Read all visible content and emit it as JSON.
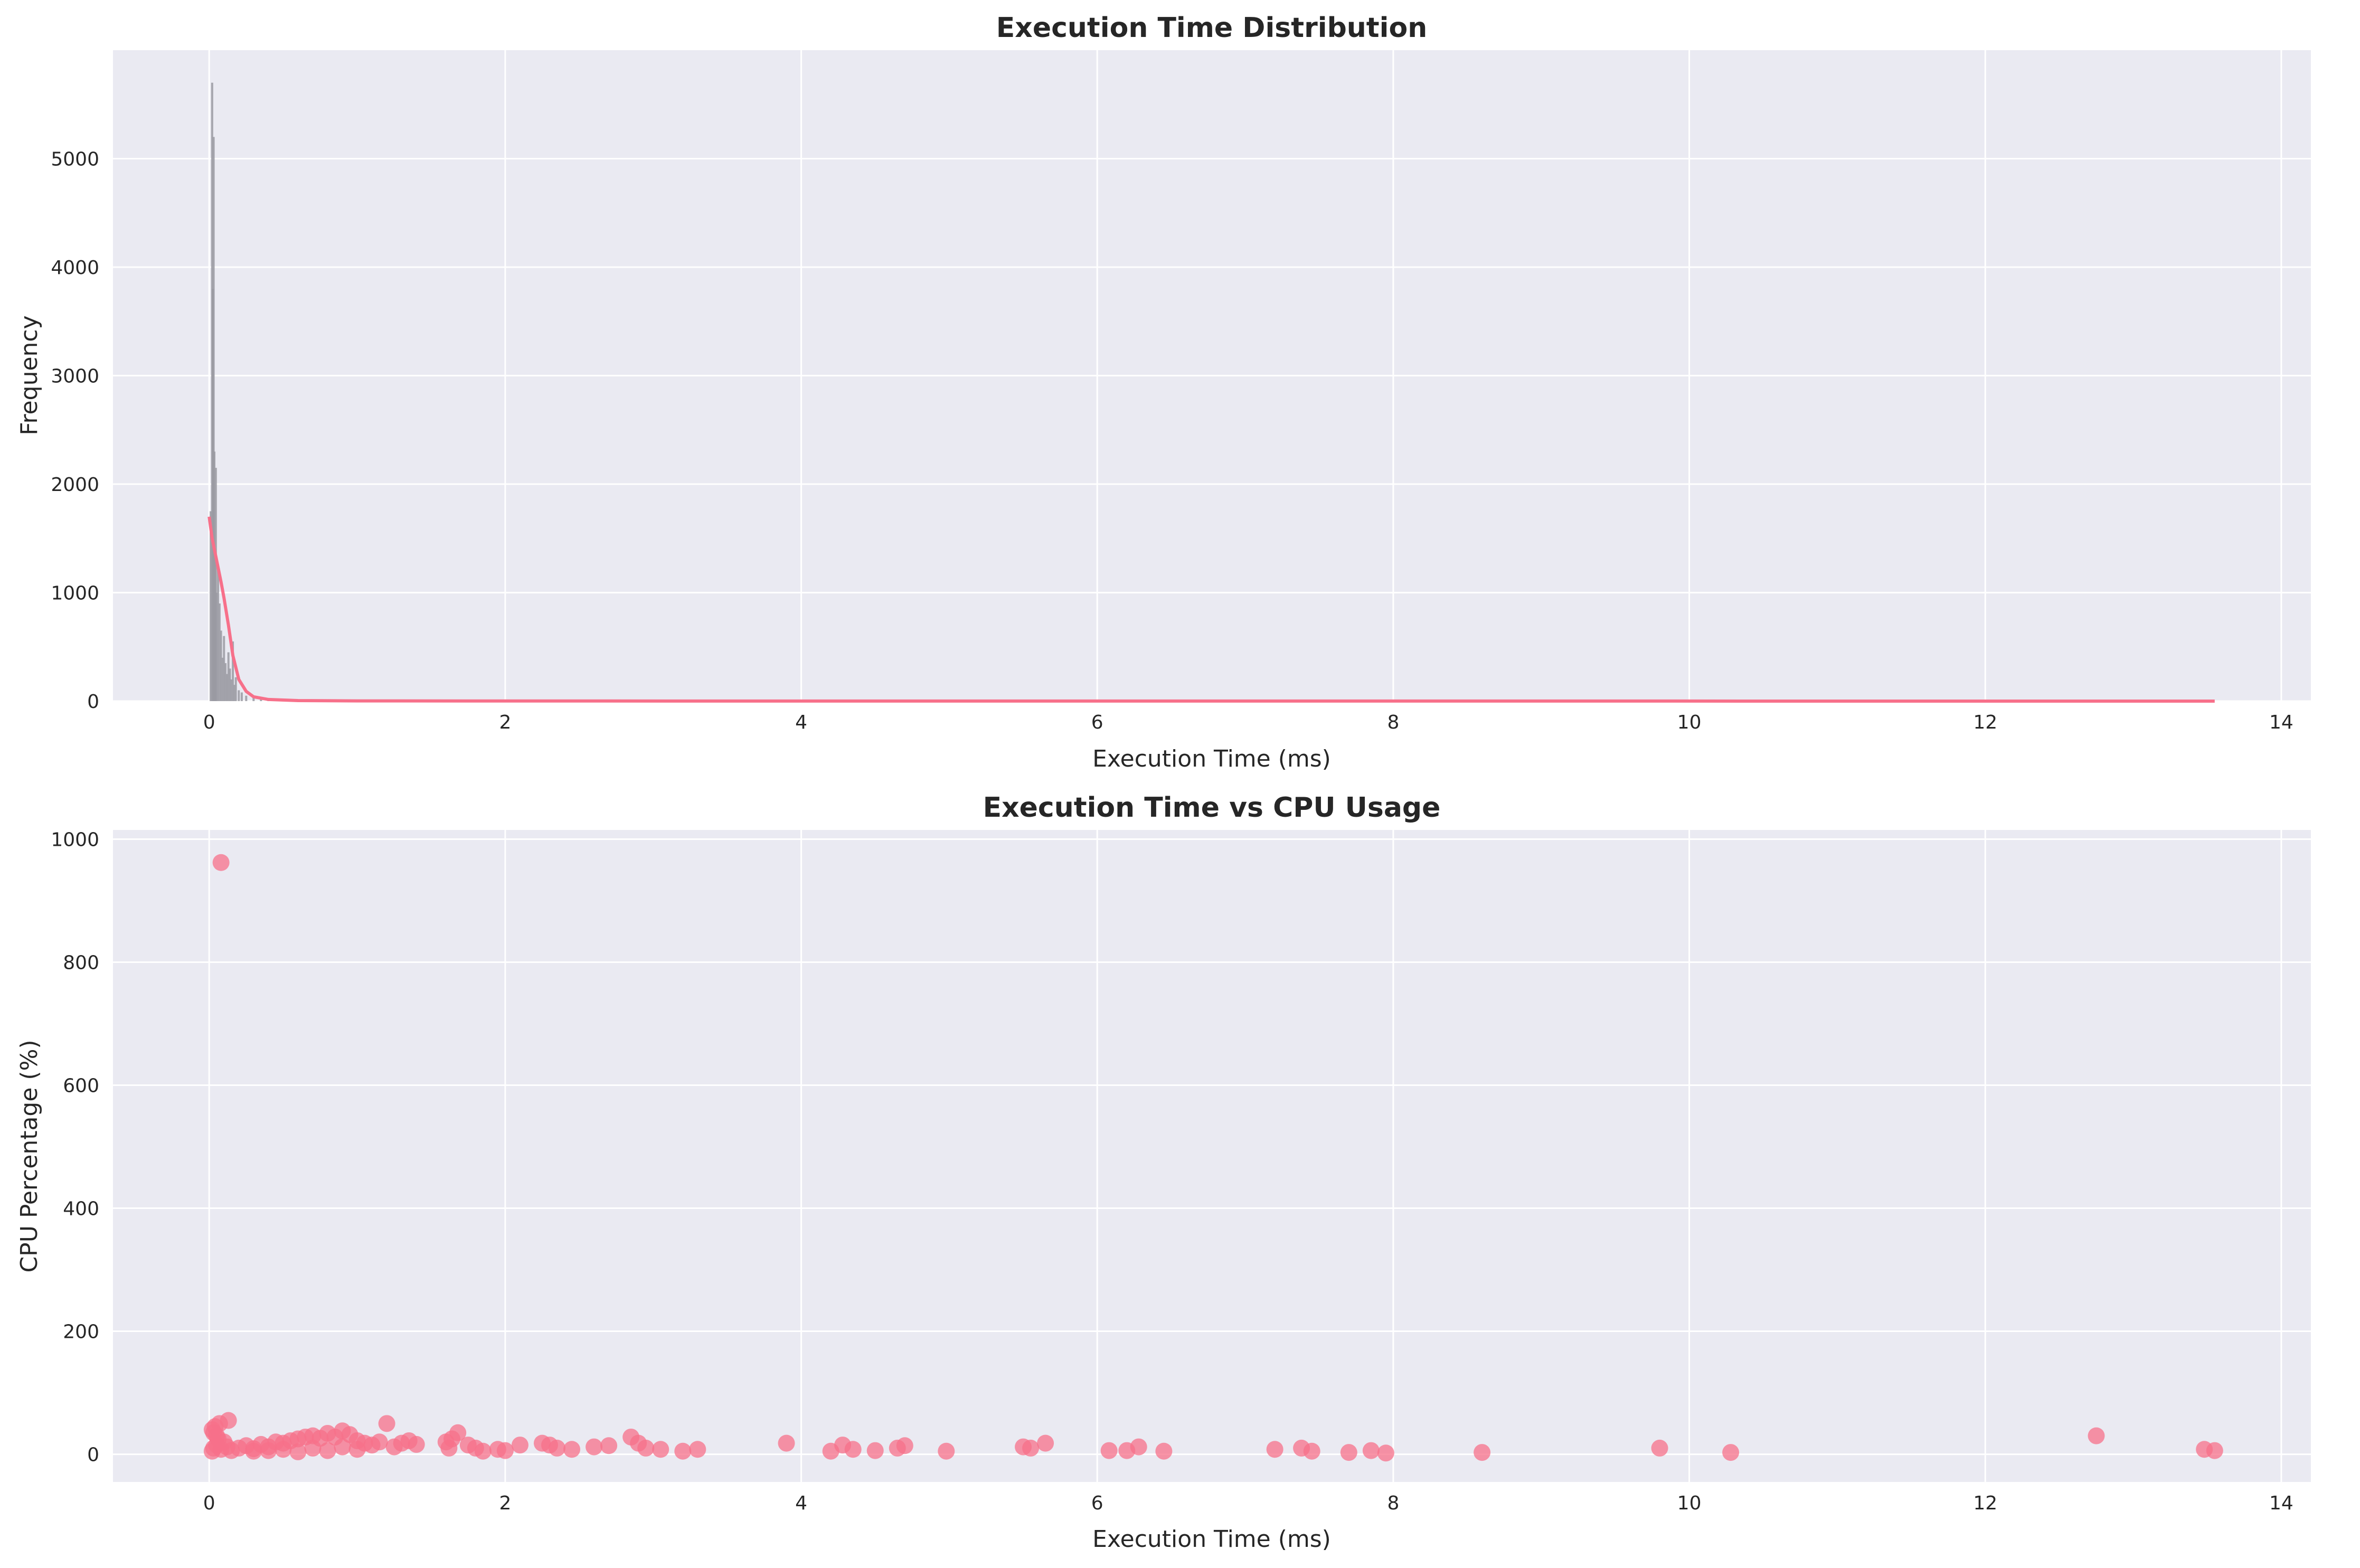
{
  "colors": {
    "accent": "#f7708a",
    "plot_bg": "#eaeaf2",
    "grid": "#ffffff",
    "hist_bar": "#9a9aa2"
  },
  "chart_data": [
    {
      "type": "histogram",
      "title": "Execution Time Distribution",
      "xlabel": "Execution Time (ms)",
      "ylabel": "Frequency",
      "xlim": [
        -0.65,
        14.2
      ],
      "ylim": [
        0,
        6000
      ],
      "xticks": [
        0,
        2,
        4,
        6,
        8,
        10,
        12,
        14
      ],
      "yticks": [
        0,
        1000,
        2000,
        3000,
        4000,
        5000
      ],
      "grid": true,
      "bins": [
        {
          "x": 0.01,
          "y": 1750
        },
        {
          "x": 0.02,
          "y": 5700
        },
        {
          "x": 0.025,
          "y": 3800
        },
        {
          "x": 0.03,
          "y": 5200
        },
        {
          "x": 0.035,
          "y": 2300
        },
        {
          "x": 0.04,
          "y": 1400
        },
        {
          "x": 0.045,
          "y": 2150
        },
        {
          "x": 0.05,
          "y": 1000
        },
        {
          "x": 0.06,
          "y": 1250
        },
        {
          "x": 0.07,
          "y": 900
        },
        {
          "x": 0.08,
          "y": 650
        },
        {
          "x": 0.09,
          "y": 400
        },
        {
          "x": 0.1,
          "y": 600
        },
        {
          "x": 0.11,
          "y": 350
        },
        {
          "x": 0.12,
          "y": 250
        },
        {
          "x": 0.13,
          "y": 450
        },
        {
          "x": 0.14,
          "y": 300
        },
        {
          "x": 0.15,
          "y": 200
        },
        {
          "x": 0.16,
          "y": 550
        },
        {
          "x": 0.17,
          "y": 150
        },
        {
          "x": 0.18,
          "y": 220
        },
        {
          "x": 0.2,
          "y": 100
        },
        {
          "x": 0.22,
          "y": 80
        },
        {
          "x": 0.25,
          "y": 50
        },
        {
          "x": 0.3,
          "y": 30
        },
        {
          "x": 0.35,
          "y": 15
        },
        {
          "x": 0.4,
          "y": 8
        }
      ],
      "kde": [
        [
          0.0,
          1700
        ],
        [
          0.02,
          1500
        ],
        [
          0.05,
          1300
        ],
        [
          0.08,
          1100
        ],
        [
          0.1,
          950
        ],
        [
          0.13,
          700
        ],
        [
          0.16,
          420
        ],
        [
          0.2,
          200
        ],
        [
          0.25,
          90
        ],
        [
          0.3,
          40
        ],
        [
          0.4,
          15
        ],
        [
          0.6,
          5
        ],
        [
          1.0,
          2
        ],
        [
          2.0,
          1
        ],
        [
          13.55,
          0
        ]
      ]
    },
    {
      "type": "scatter",
      "title": "Execution Time vs CPU Usage",
      "xlabel": "Execution Time (ms)",
      "ylabel": "CPU Percentage (%)",
      "xlim": [
        -0.65,
        14.2
      ],
      "ylim": [
        -45,
        1015
      ],
      "xticks": [
        0,
        2,
        4,
        6,
        8,
        10,
        12,
        14
      ],
      "yticks": [
        0,
        200,
        400,
        600,
        800,
        1000
      ],
      "grid": true,
      "points": [
        [
          0.08,
          962
        ],
        [
          0.02,
          40
        ],
        [
          0.03,
          35
        ],
        [
          0.04,
          45
        ],
        [
          0.05,
          30
        ],
        [
          0.06,
          25
        ],
        [
          0.07,
          50
        ],
        [
          0.1,
          20
        ],
        [
          0.13,
          55
        ],
        [
          0.02,
          5
        ],
        [
          0.03,
          10
        ],
        [
          0.05,
          15
        ],
        [
          0.08,
          8
        ],
        [
          0.12,
          12
        ],
        [
          0.15,
          6
        ],
        [
          0.2,
          10
        ],
        [
          0.25,
          14
        ],
        [
          0.3,
          9
        ],
        [
          0.35,
          16
        ],
        [
          0.4,
          12
        ],
        [
          0.45,
          20
        ],
        [
          0.5,
          18
        ],
        [
          0.55,
          22
        ],
        [
          0.6,
          25
        ],
        [
          0.65,
          28
        ],
        [
          0.7,
          30
        ],
        [
          0.75,
          26
        ],
        [
          0.8,
          34
        ],
        [
          0.85,
          28
        ],
        [
          0.9,
          38
        ],
        [
          0.95,
          32
        ],
        [
          1.0,
          22
        ],
        [
          1.05,
          18
        ],
        [
          1.1,
          15
        ],
        [
          1.15,
          20
        ],
        [
          1.2,
          50
        ],
        [
          1.25,
          12
        ],
        [
          1.3,
          18
        ],
        [
          1.35,
          22
        ],
        [
          1.4,
          16
        ],
        [
          0.3,
          5
        ],
        [
          0.4,
          6
        ],
        [
          0.5,
          8
        ],
        [
          0.6,
          4
        ],
        [
          0.7,
          10
        ],
        [
          0.8,
          6
        ],
        [
          0.9,
          12
        ],
        [
          1.0,
          8
        ],
        [
          1.6,
          20
        ],
        [
          1.62,
          10
        ],
        [
          1.64,
          25
        ],
        [
          1.68,
          35
        ],
        [
          1.75,
          15
        ],
        [
          1.8,
          10
        ],
        [
          1.85,
          5
        ],
        [
          1.95,
          8
        ],
        [
          2.0,
          6
        ],
        [
          2.1,
          15
        ],
        [
          2.25,
          18
        ],
        [
          2.3,
          15
        ],
        [
          2.35,
          10
        ],
        [
          2.45,
          8
        ],
        [
          2.6,
          12
        ],
        [
          2.7,
          14
        ],
        [
          2.85,
          28
        ],
        [
          2.9,
          18
        ],
        [
          2.95,
          10
        ],
        [
          3.05,
          8
        ],
        [
          3.2,
          5
        ],
        [
          3.3,
          8
        ],
        [
          3.9,
          18
        ],
        [
          4.2,
          5
        ],
        [
          4.28,
          15
        ],
        [
          4.35,
          8
        ],
        [
          4.5,
          6
        ],
        [
          4.65,
          10
        ],
        [
          4.7,
          14
        ],
        [
          4.98,
          5
        ],
        [
          5.5,
          12
        ],
        [
          5.55,
          10
        ],
        [
          5.65,
          18
        ],
        [
          6.08,
          6
        ],
        [
          6.2,
          6
        ],
        [
          6.28,
          12
        ],
        [
          6.45,
          5
        ],
        [
          7.2,
          8
        ],
        [
          7.38,
          10
        ],
        [
          7.45,
          5
        ],
        [
          7.7,
          3
        ],
        [
          7.85,
          6
        ],
        [
          7.95,
          2
        ],
        [
          8.6,
          3
        ],
        [
          9.8,
          10
        ],
        [
          10.28,
          3
        ],
        [
          12.75,
          30
        ],
        [
          13.48,
          8
        ],
        [
          13.55,
          6
        ]
      ]
    }
  ]
}
